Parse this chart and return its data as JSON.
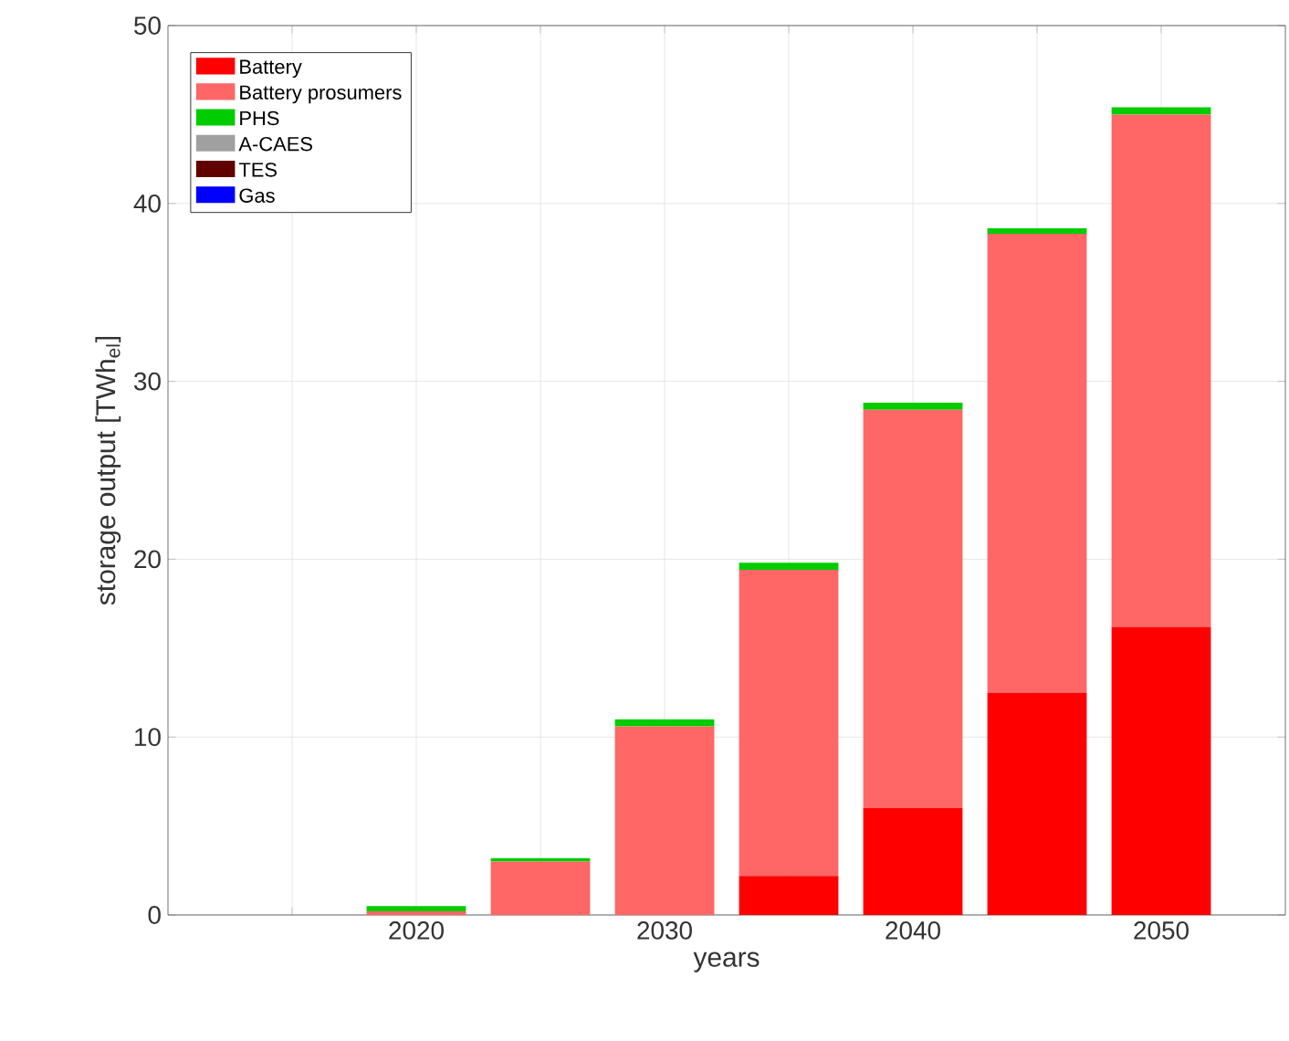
{
  "chart_data": {
    "type": "bar",
    "stacked": true,
    "xlabel": "years",
    "ylabel": "storage output [TWh$_{el}$]",
    "x": [
      2020,
      2025,
      2030,
      2035,
      2040,
      2045,
      2050
    ],
    "series": [
      {
        "name": "Battery",
        "color": "#ff0000",
        "values": [
          0,
          0,
          0,
          2.2,
          6.0,
          12.5,
          16.2
        ]
      },
      {
        "name": "Battery prosumers",
        "color": "#ff6666",
        "values": [
          0.2,
          3.0,
          10.6,
          17.2,
          22.4,
          25.8,
          28.8
        ]
      },
      {
        "name": "PHS",
        "color": "#00cc00",
        "values": [
          0.3,
          0.2,
          0.4,
          0.4,
          0.4,
          0.3,
          0.4
        ]
      },
      {
        "name": "A-CAES",
        "color": "#a0a0a0",
        "values": [
          0,
          0,
          0,
          0,
          0,
          0,
          0
        ]
      },
      {
        "name": "TES",
        "color": "#600000",
        "values": [
          0,
          0,
          0,
          0,
          0,
          0,
          0
        ]
      },
      {
        "name": "Gas",
        "color": "#0000ff",
        "values": [
          0,
          0,
          0,
          0,
          0,
          0,
          0
        ]
      }
    ],
    "xlim": [
      2010,
      2055
    ],
    "xticks": [
      {
        "value": 2015,
        "label": null
      },
      2020,
      {
        "value": 2025,
        "label": null
      },
      2030,
      {
        "value": 2035,
        "label": null
      },
      2040,
      {
        "value": 2045,
        "label": null
      },
      2050
    ],
    "ylim": [
      0,
      50
    ],
    "yticks": [
      0,
      10,
      20,
      30,
      40,
      50
    ],
    "grid": true,
    "legend": "top left"
  }
}
